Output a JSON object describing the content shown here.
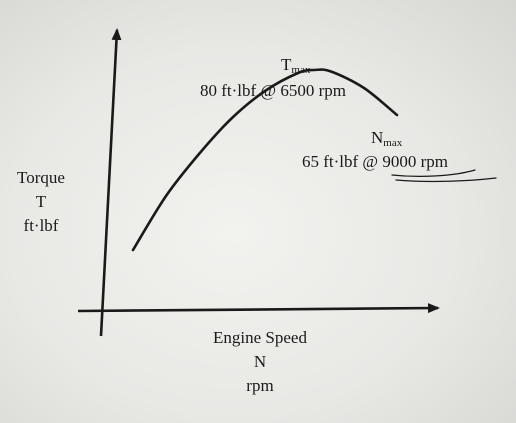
{
  "chart_data": {
    "type": "line",
    "ylabel_lines": [
      "Torque",
      "T",
      "ft·lbf"
    ],
    "xlabel_lines": [
      "Engine Speed",
      "N",
      "rpm"
    ],
    "series": [
      {
        "x": [
          1000,
          2000,
          3000,
          4000,
          5000,
          6000,
          6500,
          7000,
          8000,
          9000
        ],
        "values": [
          20,
          38,
          52,
          64,
          73,
          79,
          80,
          79.5,
          74,
          65
        ]
      }
    ],
    "xlim": [
      0,
      10000
    ],
    "ylim": [
      0,
      100
    ],
    "grid": false,
    "annotations": {
      "tmax": {
        "symbol": "T",
        "subscript": "max",
        "text": "80 ft·lbf @ 6500 rpm",
        "torque": 80,
        "rpm": 6500
      },
      "nmax": {
        "symbol": "N",
        "subscript": "max",
        "text_prefix": "65 ft·lbf @ ",
        "text_underlined": "9000 rpm",
        "torque": 65,
        "rpm": 9000
      }
    },
    "colors": {
      "ink": "#1a1a1a"
    }
  }
}
